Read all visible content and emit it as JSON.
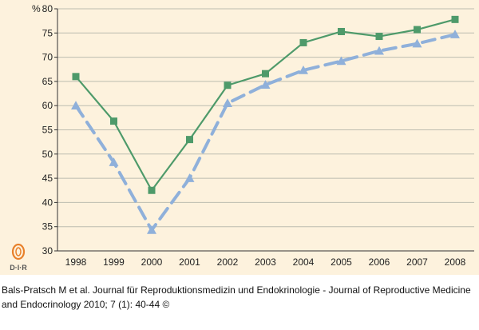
{
  "chart_data": {
    "type": "line",
    "ylabel": "%",
    "ylim": [
      30,
      80
    ],
    "yticks": [
      30,
      35,
      40,
      45,
      50,
      55,
      60,
      65,
      70,
      75,
      80
    ],
    "categories": [
      "1998",
      "1999",
      "2000",
      "2001",
      "2002",
      "2003",
      "2004",
      "2005",
      "2006",
      "2007",
      "2008"
    ],
    "grid": "horizontal",
    "series": [
      {
        "style": "solid",
        "marker": "square",
        "color": "#4e9a6a",
        "values": [
          66,
          56.8,
          42.5,
          53,
          64.2,
          66.6,
          73,
          75.3,
          74.3,
          75.7,
          77.8
        ]
      },
      {
        "style": "dashed",
        "marker": "triangle",
        "color": "#8fb0da",
        "values": [
          60,
          48.3,
          34.3,
          45,
          60.5,
          64.3,
          67.3,
          69.2,
          71.3,
          72.8,
          74.7
        ]
      }
    ]
  },
  "logo": {
    "text": "D·I·R",
    "colors": {
      "emblem": "#e8802a",
      "text": "#555555"
    }
  },
  "caption": "Bals-Pratsch M et al. Journal für Reproduktionsmedizin und Endokrinologie - Journal of Reproductive Medicine and Endocrinology 2010; 7 (1): 40-44 ©"
}
